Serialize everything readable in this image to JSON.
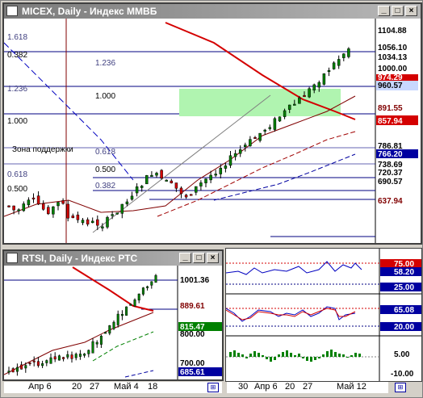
{
  "colors": {
    "accent": "#0000a0",
    "ma_red": "#d40000",
    "candle_green": "#008000",
    "highlight_zone": "#b0f4b0"
  },
  "micex": {
    "title": "MICEX, Daily - Индекс ММВБ",
    "fib_left": [
      "1.618",
      "0.382",
      "1.236",
      "1.000",
      "0.618",
      "0.500"
    ],
    "fib_mid": [
      "1.236",
      "1.000",
      "0.618",
      "0.500",
      "0.382"
    ],
    "support_label": "Зона поддержки",
    "price_labels": [
      "1104.88",
      "1056.10",
      "1034.13",
      "1000.00",
      "974.29",
      "960.57",
      "891.55",
      "857.94",
      "786.81",
      "766.20",
      "738.69",
      "720.37",
      "690.57",
      "637.94"
    ]
  },
  "rtsi": {
    "title": "RTSI, Daily - Индекс РТС",
    "price_labels": [
      "1001.36",
      "889.61",
      "815.47",
      "800.00",
      "700.00",
      "685.61"
    ],
    "axis_dates": [
      "Апр 6",
      "20",
      "27",
      "Май 4",
      "18"
    ]
  },
  "osc1": {
    "labels": [
      "75.00",
      "58.20",
      "25.00"
    ]
  },
  "osc2": {
    "labels": [
      "65.08",
      "20.00"
    ]
  },
  "macd": {
    "labels": [
      "5.00",
      "-10.00"
    ]
  },
  "bottom_axis": {
    "dates": [
      "30",
      "Апр 6",
      "20",
      "27",
      "Май 12"
    ]
  },
  "buttons": {
    "minimize": "_",
    "maximize": "□",
    "close": "×",
    "scale": "⊞"
  }
}
